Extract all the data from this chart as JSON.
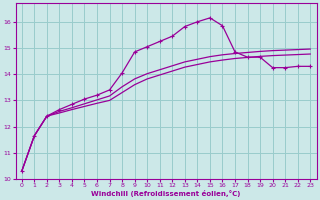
{
  "xlabel": "Windchill (Refroidissement éolien,°C)",
  "background_color": "#cce8e8",
  "grid_color": "#99cccc",
  "line_color": "#990099",
  "xlim": [
    -0.5,
    23.5
  ],
  "ylim": [
    10,
    16.7
  ],
  "yticks": [
    10,
    11,
    12,
    13,
    14,
    15,
    16
  ],
  "xticks": [
    0,
    1,
    2,
    3,
    4,
    5,
    6,
    7,
    8,
    9,
    10,
    11,
    12,
    13,
    14,
    15,
    16,
    17,
    18,
    19,
    20,
    21,
    22,
    23
  ],
  "curve1_x": [
    0,
    1,
    2,
    3,
    4,
    5,
    6,
    7,
    8,
    9,
    10,
    11,
    12,
    13,
    14,
    15,
    16,
    17,
    18,
    19,
    20,
    21,
    22,
    23
  ],
  "curve1_y": [
    10.3,
    11.65,
    12.4,
    12.65,
    12.85,
    13.05,
    13.2,
    13.4,
    14.05,
    14.85,
    15.05,
    15.25,
    15.45,
    15.82,
    16.0,
    16.15,
    15.85,
    14.85,
    14.65,
    14.65,
    14.25,
    14.25,
    14.3,
    14.3
  ],
  "curve2_x": [
    0,
    1,
    2,
    3,
    4,
    5,
    6,
    7,
    8,
    9,
    10,
    11,
    12,
    13,
    14,
    15,
    16,
    17,
    18,
    19,
    20,
    21,
    22,
    23
  ],
  "curve2_y": [
    10.3,
    11.65,
    12.4,
    12.58,
    12.72,
    12.87,
    13.02,
    13.17,
    13.52,
    13.82,
    14.02,
    14.17,
    14.32,
    14.47,
    14.57,
    14.67,
    14.74,
    14.79,
    14.83,
    14.87,
    14.9,
    14.92,
    14.94,
    14.96
  ],
  "curve3_x": [
    0,
    1,
    2,
    3,
    4,
    5,
    6,
    7,
    8,
    9,
    10,
    11,
    12,
    13,
    14,
    15,
    16,
    17,
    18,
    19,
    20,
    21,
    22,
    23
  ],
  "curve3_y": [
    10.3,
    11.65,
    12.4,
    12.52,
    12.65,
    12.77,
    12.89,
    13.0,
    13.3,
    13.6,
    13.82,
    13.97,
    14.12,
    14.27,
    14.37,
    14.47,
    14.54,
    14.6,
    14.64,
    14.68,
    14.71,
    14.73,
    14.75,
    14.77
  ]
}
